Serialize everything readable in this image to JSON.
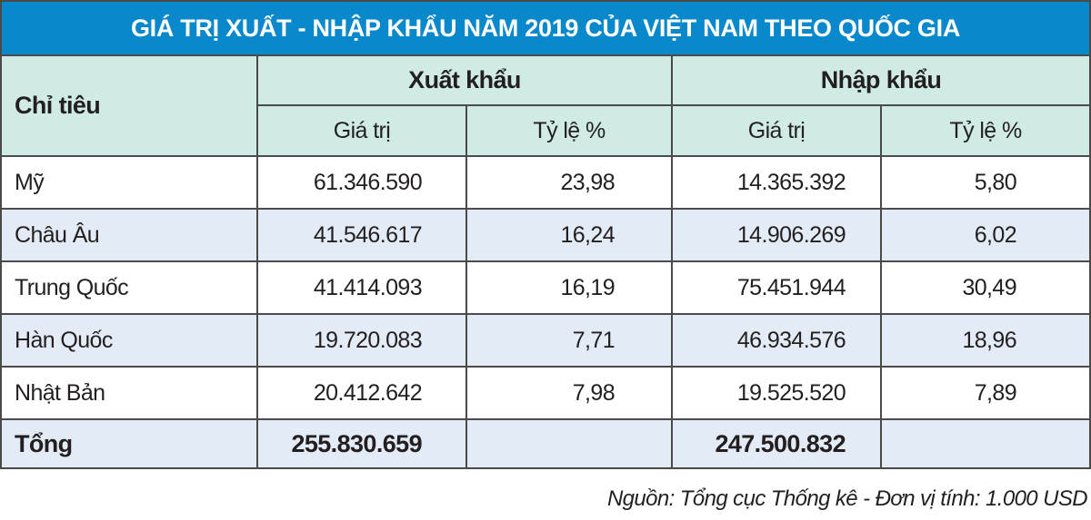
{
  "title": "GIÁ TRỊ XUẤT - NHẬP KHẨU NĂM 2019 CỦA VIỆT NAM THEO QUỐC GIA",
  "header": {
    "indicator": "Chỉ tiêu",
    "export": "Xuất khẩu",
    "import": "Nhập khẩu",
    "value": "Giá trị",
    "ratio": "Tỷ lệ %"
  },
  "rows": [
    {
      "label": "Mỹ",
      "export_value": "61.346.590",
      "export_ratio": "23,98",
      "import_value": "14.365.392",
      "import_ratio": "5,80"
    },
    {
      "label": "Châu Âu",
      "export_value": "41.546.617",
      "export_ratio": "16,24",
      "import_value": "14.906.269",
      "import_ratio": "6,02"
    },
    {
      "label": "Trung Quốc",
      "export_value": "41.414.093",
      "export_ratio": "16,19",
      "import_value": "75.451.944",
      "import_ratio": "30,49"
    },
    {
      "label": "Hàn Quốc",
      "export_value": "19.720.083",
      "export_ratio": "7,71",
      "import_value": "46.934.576",
      "import_ratio": "18,96"
    },
    {
      "label": "Nhật Bản",
      "export_value": "20.412.642",
      "export_ratio": "7,98",
      "import_value": "19.525.520",
      "import_ratio": "7,89"
    }
  ],
  "total": {
    "label": "Tổng",
    "export_value": "255.830.659",
    "export_ratio": "",
    "import_value": "247.500.832",
    "import_ratio": ""
  },
  "source": "Nguồn: Tổng cục Thống kê - Đơn vị tính: 1.000 USD",
  "colors": {
    "title_bg": "#0a88cc",
    "header_bg": "#d0ebe5",
    "alt_row_bg": "#e3ebf6"
  },
  "chart_data": {
    "type": "table",
    "title": "GIÁ TRỊ XUẤT - NHẬP KHẨU NĂM 2019 CỦA VIỆT NAM THEO QUỐC GIA",
    "columns": [
      "Chỉ tiêu",
      "Xuất khẩu - Giá trị",
      "Xuất khẩu - Tỷ lệ %",
      "Nhập khẩu - Giá trị",
      "Nhập khẩu - Tỷ lệ %"
    ],
    "rows": [
      [
        "Mỹ",
        61346590,
        23.98,
        14365392,
        5.8
      ],
      [
        "Châu Âu",
        41546617,
        16.24,
        14906269,
        6.02
      ],
      [
        "Trung Quốc",
        41414093,
        16.19,
        75451944,
        30.49
      ],
      [
        "Hàn Quốc",
        19720083,
        7.71,
        46934576,
        18.96
      ],
      [
        "Nhật Bản",
        20412642,
        7.98,
        19525520,
        7.89
      ],
      [
        "Tổng",
        255830659,
        null,
        247500832,
        null
      ]
    ],
    "unit": "1.000 USD"
  }
}
